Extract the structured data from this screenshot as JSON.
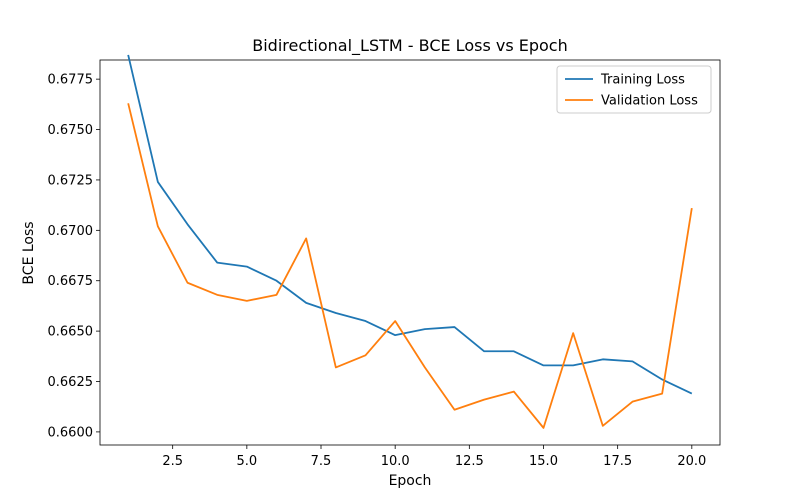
{
  "chart_data": {
    "type": "line",
    "title": "Bidirectional_LSTM - BCE Loss vs Epoch",
    "xlabel": "Epoch",
    "ylabel": "BCE Loss",
    "xlim": [
      0.05,
      20.95
    ],
    "ylim": [
      0.65935,
      0.67845
    ],
    "grid": false,
    "legend_position": "top-right",
    "x_ticks": [
      2.5,
      5.0,
      7.5,
      10.0,
      12.5,
      15.0,
      17.5,
      20.0
    ],
    "x_tick_labels": [
      "2.5",
      "5.0",
      "7.5",
      "10.0",
      "12.5",
      "15.0",
      "17.5",
      "20.0"
    ],
    "y_ticks": [
      0.66,
      0.6625,
      0.665,
      0.6675,
      0.67,
      0.6725,
      0.675,
      0.6775
    ],
    "y_tick_labels": [
      "0.6600",
      "0.6625",
      "0.6650",
      "0.6675",
      "0.6700",
      "0.6725",
      "0.6750",
      "0.6775"
    ],
    "x": [
      1,
      2,
      3,
      4,
      5,
      6,
      7,
      8,
      9,
      10,
      11,
      12,
      13,
      14,
      15,
      16,
      17,
      18,
      19,
      20
    ],
    "series": [
      {
        "name": "Training Loss",
        "color": "#1f77b4",
        "values": [
          0.6787,
          0.6724,
          0.6703,
          0.6684,
          0.6682,
          0.6675,
          0.6664,
          0.6659,
          0.6655,
          0.6648,
          0.6651,
          0.6652,
          0.664,
          0.664,
          0.6633,
          0.6633,
          0.6636,
          0.6635,
          0.6626,
          0.6619
        ]
      },
      {
        "name": "Validation Loss",
        "color": "#ff7f0e",
        "values": [
          0.6763,
          0.6702,
          0.6674,
          0.6668,
          0.6665,
          0.6668,
          0.6696,
          0.6632,
          0.6638,
          0.6655,
          0.6632,
          0.6611,
          0.6616,
          0.662,
          0.6602,
          0.6649,
          0.6603,
          0.6615,
          0.6619,
          0.6711
        ]
      }
    ]
  }
}
